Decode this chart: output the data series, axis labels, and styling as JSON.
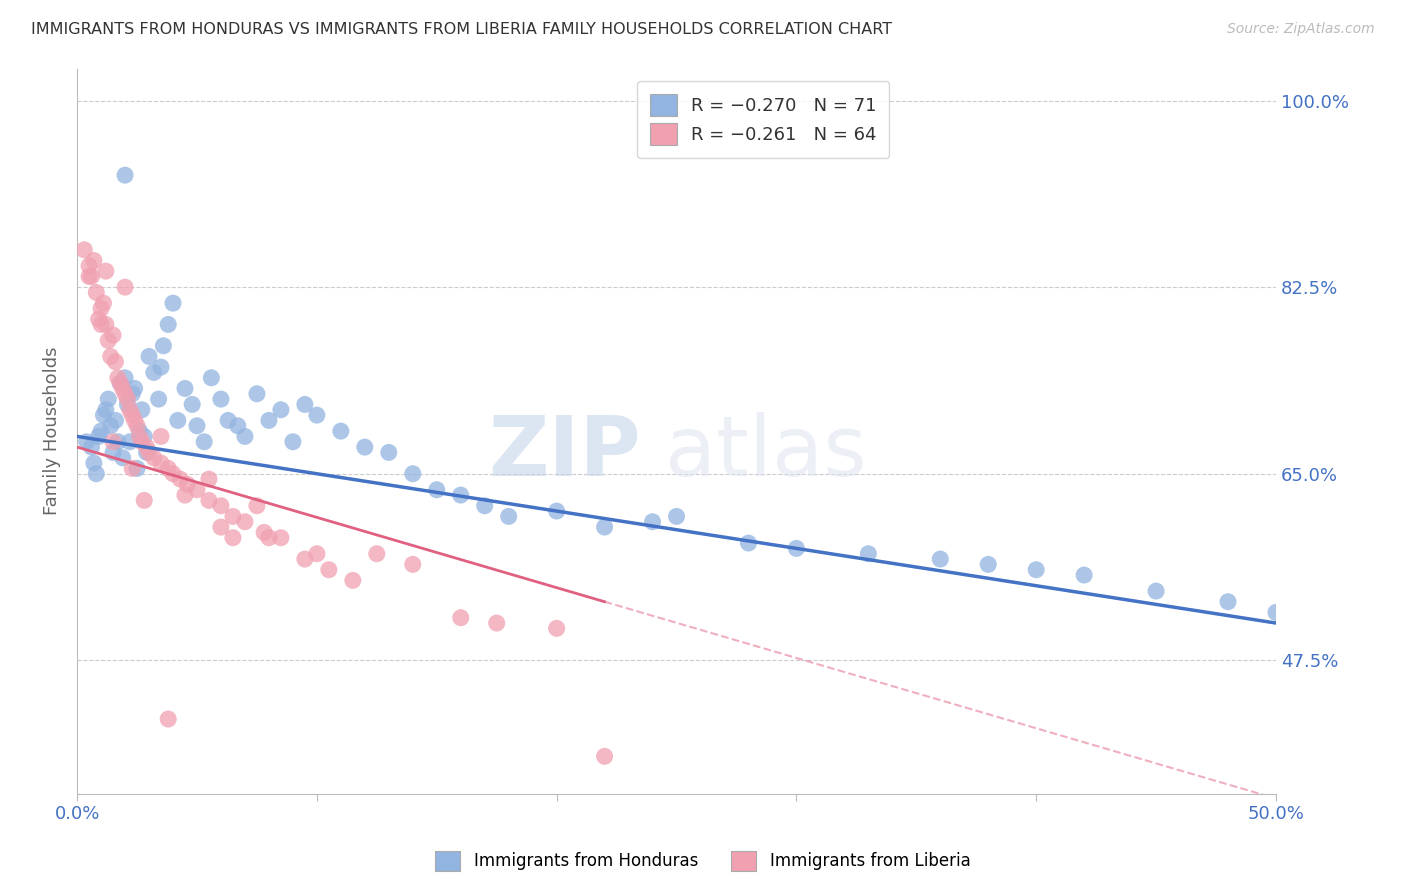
{
  "title": "IMMIGRANTS FROM HONDURAS VS IMMIGRANTS FROM LIBERIA FAMILY HOUSEHOLDS CORRELATION CHART",
  "source": "Source: ZipAtlas.com",
  "ylabel": "Family Households",
  "yticks": [
    47.5,
    65.0,
    82.5,
    100.0
  ],
  "ytick_labels": [
    "47.5%",
    "65.0%",
    "82.5%",
    "100.0%"
  ],
  "xmin": 0.0,
  "xmax": 50.0,
  "ymin": 35.0,
  "ymax": 103.0,
  "legend_r1": "R = −0.270",
  "legend_n1": "N = 71",
  "legend_r2": "R = −0.261",
  "legend_n2": "N = 64",
  "color_blue": "#92b4e0",
  "color_pink": "#f0a0b0",
  "color_blue_dark": "#4472c4",
  "color_pink_dark": "#e06080",
  "color_axis_label": "#4472c4",
  "color_grid": "#cccccc",
  "watermark_zip": "ZIP",
  "watermark_atlas": "atlas",
  "honduras_x": [
    0.4,
    0.6,
    0.7,
    0.8,
    0.9,
    1.0,
    1.1,
    1.2,
    1.3,
    1.4,
    1.5,
    1.6,
    1.7,
    1.8,
    1.9,
    2.0,
    2.1,
    2.2,
    2.3,
    2.4,
    2.5,
    2.6,
    2.7,
    2.8,
    2.9,
    3.0,
    3.2,
    3.4,
    3.5,
    3.6,
    3.8,
    4.0,
    4.2,
    4.5,
    4.8,
    5.0,
    5.3,
    5.6,
    6.0,
    6.3,
    6.7,
    7.0,
    7.5,
    8.0,
    8.5,
    9.0,
    9.5,
    10.0,
    11.0,
    12.0,
    13.0,
    14.0,
    15.0,
    16.0,
    17.0,
    18.0,
    20.0,
    22.0,
    24.0,
    25.0,
    28.0,
    30.0,
    33.0,
    36.0,
    38.0,
    40.0,
    42.0,
    45.0,
    48.0,
    50.0,
    2.0
  ],
  "honduras_y": [
    68.0,
    67.5,
    66.0,
    65.0,
    68.5,
    69.0,
    70.5,
    71.0,
    72.0,
    69.5,
    67.0,
    70.0,
    68.0,
    73.5,
    66.5,
    74.0,
    71.5,
    68.0,
    72.5,
    73.0,
    65.5,
    69.0,
    71.0,
    68.5,
    67.0,
    76.0,
    74.5,
    72.0,
    75.0,
    77.0,
    79.0,
    81.0,
    70.0,
    73.0,
    71.5,
    69.5,
    68.0,
    74.0,
    72.0,
    70.0,
    69.5,
    68.5,
    72.5,
    70.0,
    71.0,
    68.0,
    71.5,
    70.5,
    69.0,
    67.5,
    67.0,
    65.0,
    63.5,
    63.0,
    62.0,
    61.0,
    61.5,
    60.0,
    60.5,
    61.0,
    58.5,
    58.0,
    57.5,
    57.0,
    56.5,
    56.0,
    55.5,
    54.0,
    53.0,
    52.0,
    93.0
  ],
  "liberia_x": [
    0.3,
    0.5,
    0.6,
    0.7,
    0.8,
    0.9,
    1.0,
    1.1,
    1.2,
    1.3,
    1.4,
    1.5,
    1.6,
    1.7,
    1.8,
    1.9,
    2.0,
    2.1,
    2.2,
    2.3,
    2.4,
    2.5,
    2.6,
    2.7,
    2.9,
    3.0,
    3.2,
    3.5,
    3.8,
    4.0,
    4.3,
    4.6,
    5.0,
    5.5,
    6.0,
    6.5,
    7.0,
    7.8,
    8.5,
    9.5,
    10.5,
    11.5,
    12.5,
    14.0,
    16.0,
    17.5,
    20.0,
    22.0,
    1.5,
    2.8,
    4.5,
    6.0,
    8.0,
    0.5,
    1.0,
    2.0,
    3.5,
    5.5,
    7.5,
    10.0,
    1.2,
    2.3,
    3.8,
    6.5
  ],
  "liberia_y": [
    86.0,
    84.5,
    83.5,
    85.0,
    82.0,
    79.5,
    80.5,
    81.0,
    79.0,
    77.5,
    76.0,
    78.0,
    75.5,
    74.0,
    73.5,
    73.0,
    72.5,
    72.0,
    71.0,
    70.5,
    70.0,
    69.5,
    68.5,
    68.0,
    67.5,
    67.0,
    66.5,
    66.0,
    65.5,
    65.0,
    64.5,
    64.0,
    63.5,
    62.5,
    62.0,
    61.0,
    60.5,
    59.5,
    59.0,
    57.0,
    56.0,
    55.0,
    57.5,
    56.5,
    51.5,
    51.0,
    50.5,
    38.5,
    68.0,
    62.5,
    63.0,
    60.0,
    59.0,
    83.5,
    79.0,
    82.5,
    68.5,
    64.5,
    62.0,
    57.5,
    84.0,
    65.5,
    42.0,
    59.0
  ],
  "blue_line_x0": 0.0,
  "blue_line_y0": 68.5,
  "blue_line_x1": 50.0,
  "blue_line_y1": 51.0,
  "pink_line_x0": 0.0,
  "pink_line_y0": 67.5,
  "pink_line_x1": 22.0,
  "pink_line_y1": 53.0
}
